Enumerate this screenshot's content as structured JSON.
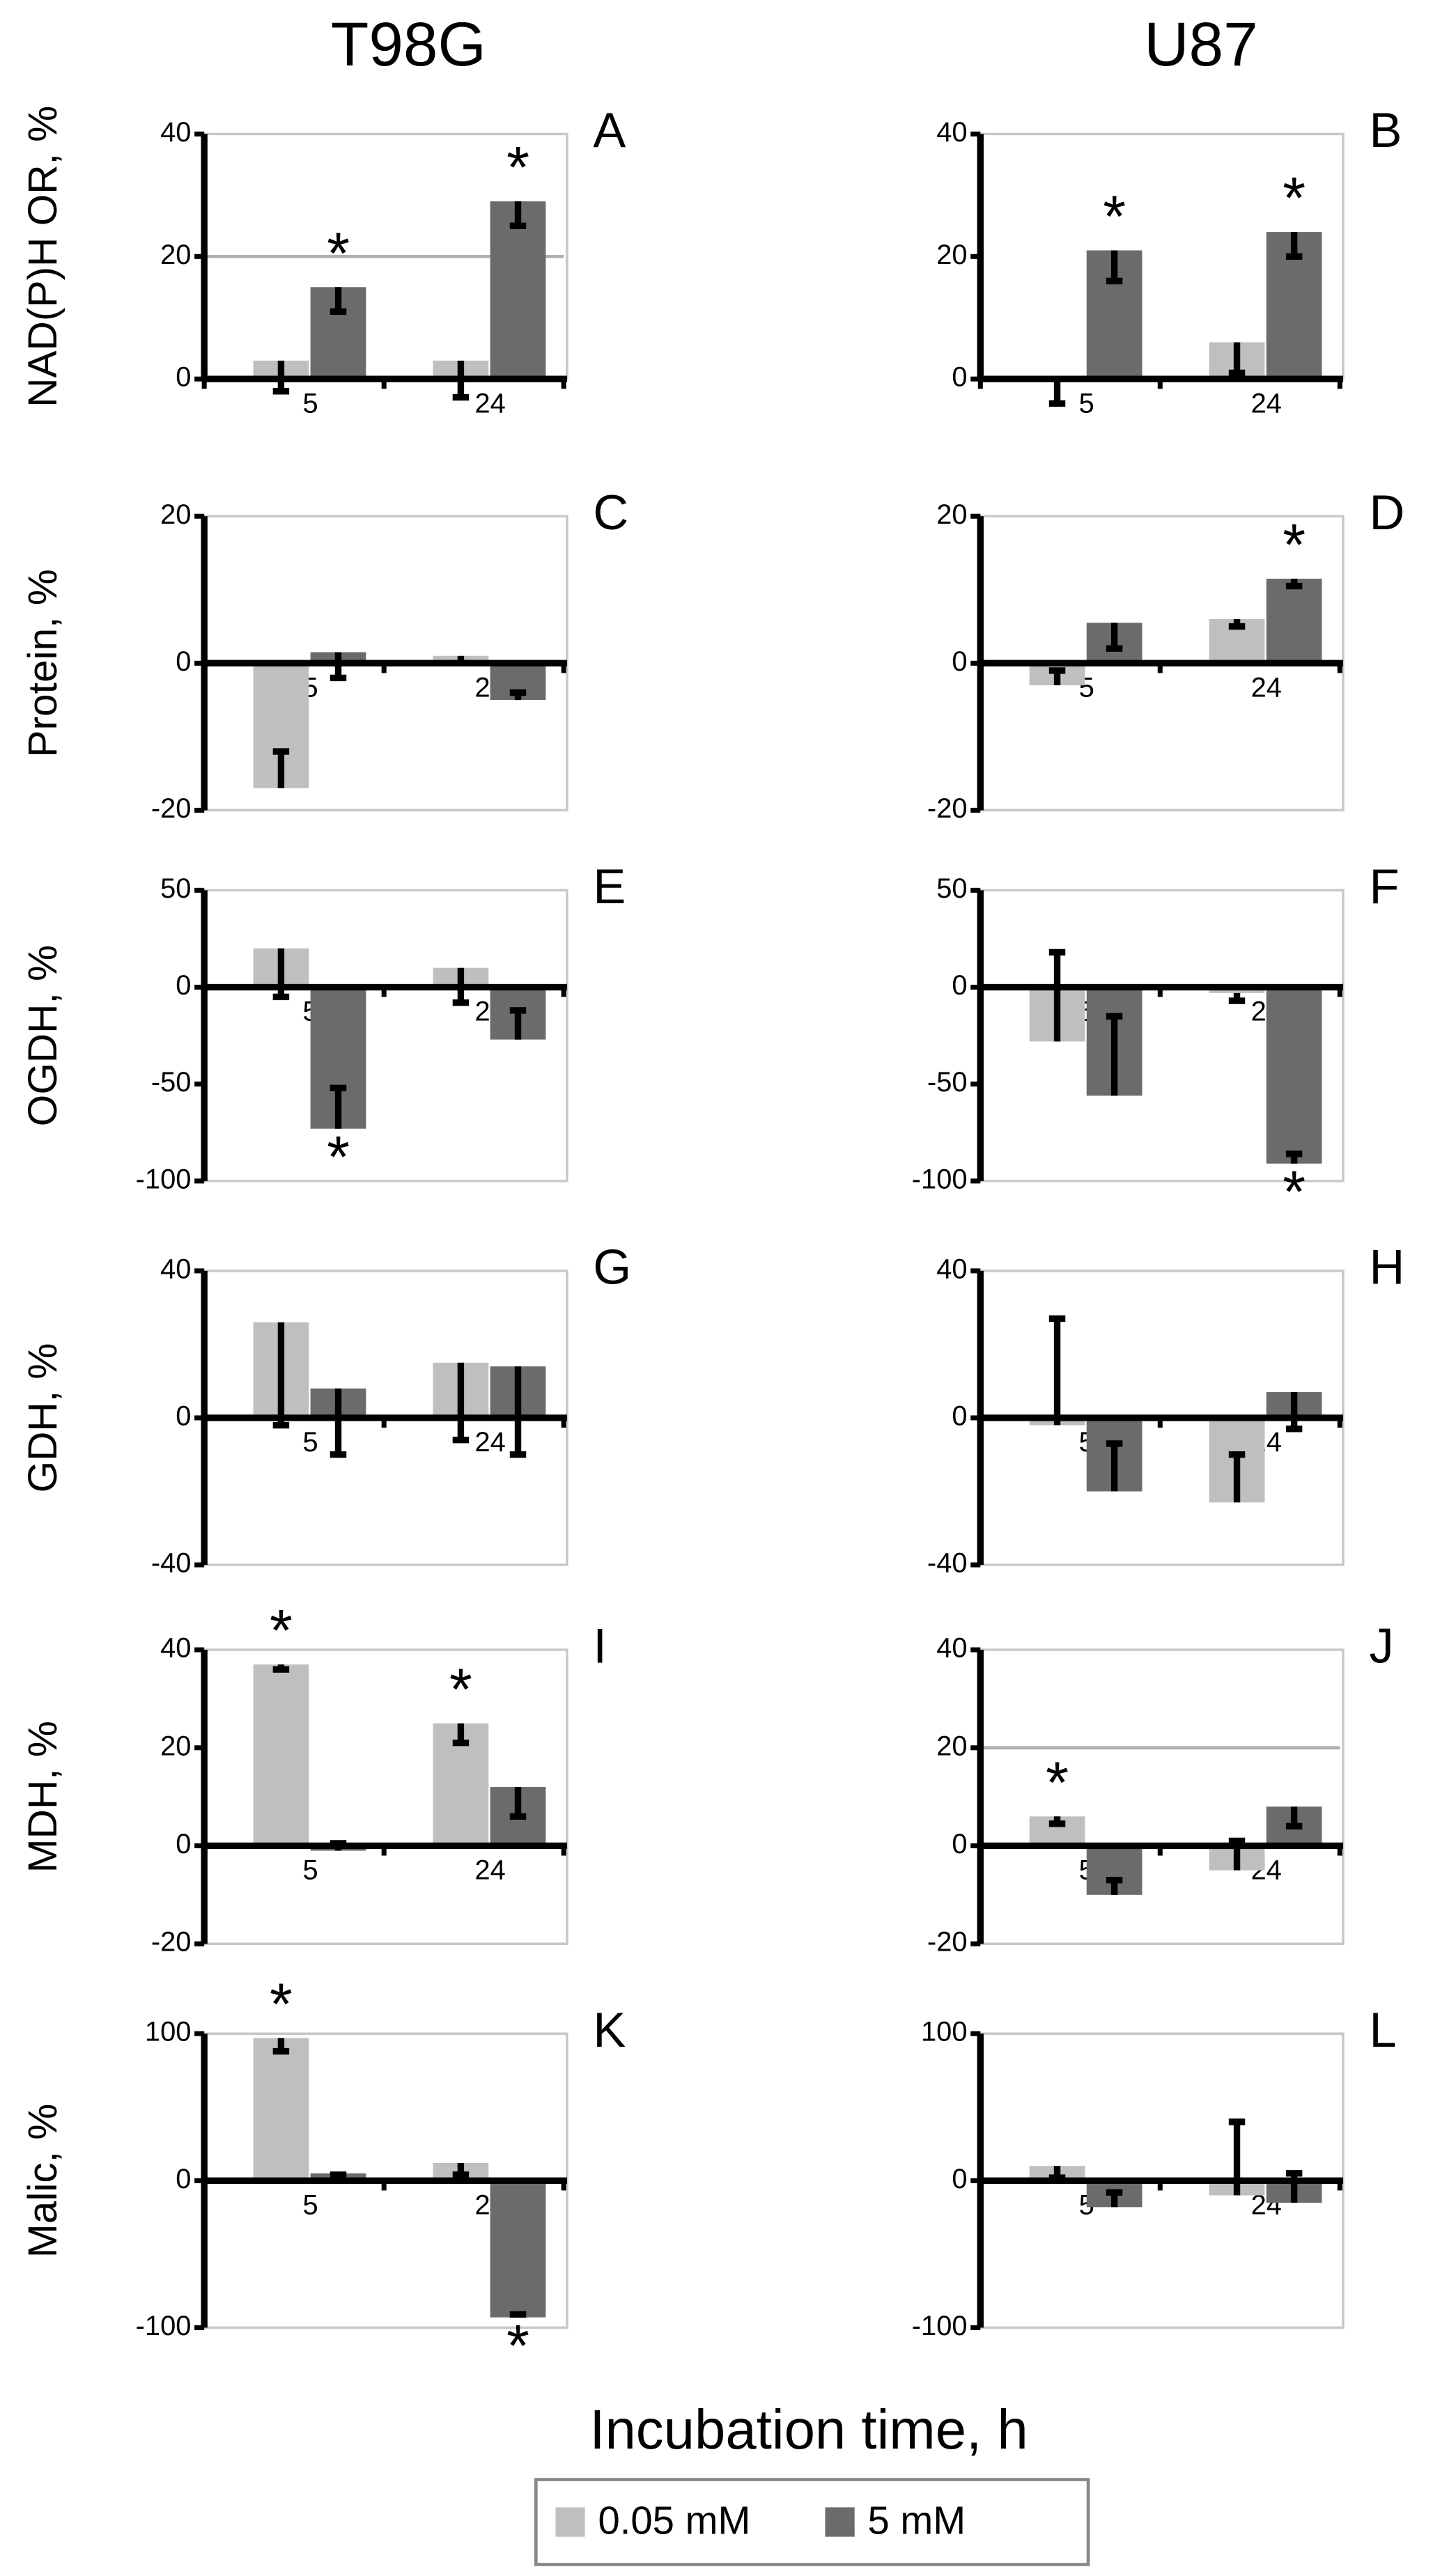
{
  "columns": [
    "T98G",
    "U87"
  ],
  "x_label": "Incubation time, h",
  "legend": [
    {
      "name": "0.05 mM",
      "color": "#bfbfbf"
    },
    {
      "name": "5 mM",
      "color": "#6b6b6b"
    }
  ],
  "chart_data": [
    {
      "type": "bar",
      "panel": "A",
      "ylabel": "NAD(P)H OR, %",
      "categories": [
        "5",
        "24"
      ],
      "ylim": [
        0,
        40
      ],
      "yticks": [
        0,
        20,
        40
      ],
      "grid": true,
      "series": [
        {
          "values": [
            3,
            3
          ],
          "error_ends": [
            -2,
            -3
          ],
          "annotations": [
            null,
            null
          ]
        },
        {
          "values": [
            15,
            29
          ],
          "error_ends": [
            11,
            25
          ],
          "annotations": [
            "*",
            "*"
          ]
        }
      ]
    },
    {
      "type": "bar",
      "panel": "B",
      "categories": [
        "5",
        "24"
      ],
      "ylim": [
        0,
        40
      ],
      "yticks": [
        0,
        20,
        40
      ],
      "grid": false,
      "series": [
        {
          "values": [
            0,
            6
          ],
          "error_ends": [
            -4,
            1
          ],
          "annotations": [
            null,
            null
          ]
        },
        {
          "values": [
            21,
            24
          ],
          "error_ends": [
            16,
            20
          ],
          "annotations": [
            "*",
            "*"
          ]
        }
      ]
    },
    {
      "type": "bar",
      "panel": "C",
      "ylabel": "Protein, %",
      "categories": [
        "5",
        "24"
      ],
      "ylim": [
        -20,
        20
      ],
      "yticks": [
        -20,
        0,
        20
      ],
      "grid": false,
      "series": [
        {
          "values": [
            -17,
            1
          ],
          "error_ends": [
            -12,
            0
          ],
          "annotations": [
            null,
            null
          ]
        },
        {
          "values": [
            1.5,
            -5
          ],
          "error_ends": [
            -2,
            -4
          ],
          "annotations": [
            null,
            null
          ]
        }
      ]
    },
    {
      "type": "bar",
      "panel": "D",
      "categories": [
        "5",
        "24"
      ],
      "ylim": [
        -20,
        20
      ],
      "yticks": [
        -20,
        0,
        20
      ],
      "grid": false,
      "series": [
        {
          "values": [
            -3,
            6
          ],
          "error_ends": [
            -1,
            5
          ],
          "annotations": [
            null,
            null
          ]
        },
        {
          "values": [
            5.5,
            11.5
          ],
          "error_ends": [
            2,
            10.5
          ],
          "annotations": [
            null,
            "*"
          ]
        }
      ]
    },
    {
      "type": "bar",
      "panel": "E",
      "ylabel": "OGDH, %",
      "categories": [
        "5",
        "24"
      ],
      "ylim": [
        -100,
        50
      ],
      "yticks": [
        -100,
        -50,
        0,
        50
      ],
      "grid": false,
      "series": [
        {
          "values": [
            20,
            10
          ],
          "error_ends": [
            -5,
            -8
          ],
          "annotations": [
            null,
            null
          ]
        },
        {
          "values": [
            -73,
            -27
          ],
          "error_ends": [
            -52,
            -12
          ],
          "annotations": [
            "*",
            null
          ]
        }
      ]
    },
    {
      "type": "bar",
      "panel": "F",
      "categories": [
        "5",
        "24"
      ],
      "ylim": [
        -100,
        50
      ],
      "yticks": [
        -100,
        -50,
        0,
        50
      ],
      "grid": false,
      "series": [
        {
          "values": [
            -28,
            -3
          ],
          "error_ends": [
            18,
            -7
          ],
          "annotations": [
            null,
            null
          ]
        },
        {
          "values": [
            -56,
            -91
          ],
          "error_ends": [
            -15,
            -86
          ],
          "annotations": [
            null,
            "*"
          ]
        }
      ]
    },
    {
      "type": "bar",
      "panel": "G",
      "ylabel": "GDH, %",
      "categories": [
        "5",
        "24"
      ],
      "ylim": [
        -40,
        40
      ],
      "yticks": [
        -40,
        0,
        40
      ],
      "grid": false,
      "series": [
        {
          "values": [
            26,
            15
          ],
          "error_ends": [
            -2,
            -6
          ],
          "annotations": [
            null,
            null
          ]
        },
        {
          "values": [
            8,
            14
          ],
          "error_ends": [
            -10,
            -10
          ],
          "annotations": [
            null,
            null
          ]
        }
      ]
    },
    {
      "type": "bar",
      "panel": "H",
      "categories": [
        "5",
        "24"
      ],
      "ylim": [
        -40,
        40
      ],
      "yticks": [
        -40,
        0,
        40
      ],
      "grid": false,
      "series": [
        {
          "values": [
            -2,
            -23
          ],
          "error_ends": [
            27,
            -10
          ],
          "annotations": [
            null,
            null
          ]
        },
        {
          "values": [
            -20,
            7
          ],
          "error_ends": [
            -7,
            -3
          ],
          "annotations": [
            null,
            null
          ]
        }
      ]
    },
    {
      "type": "bar",
      "panel": "I",
      "ylabel": "MDH, %",
      "categories": [
        "5",
        "24"
      ],
      "ylim": [
        -20,
        40
      ],
      "yticks": [
        -20,
        0,
        20,
        40
      ],
      "grid": false,
      "series": [
        {
          "values": [
            37,
            25
          ],
          "error_ends": [
            36,
            21
          ],
          "annotations": [
            "*",
            "*"
          ]
        },
        {
          "values": [
            -1,
            12
          ],
          "error_ends": [
            0.5,
            6
          ],
          "annotations": [
            null,
            null
          ]
        }
      ]
    },
    {
      "type": "bar",
      "panel": "J",
      "categories": [
        "5",
        "24"
      ],
      "ylim": [
        -20,
        40
      ],
      "yticks": [
        -20,
        0,
        20,
        40
      ],
      "grid": true,
      "series": [
        {
          "values": [
            6,
            -5
          ],
          "error_ends": [
            4.5,
            1
          ],
          "annotations": [
            "*",
            null
          ]
        },
        {
          "values": [
            -10,
            8
          ],
          "error_ends": [
            -7,
            4
          ],
          "annotations": [
            null,
            null
          ]
        }
      ]
    },
    {
      "type": "bar",
      "panel": "K",
      "ylabel": "Malic, %",
      "categories": [
        "5",
        "24"
      ],
      "ylim": [
        -100,
        100
      ],
      "yticks": [
        -100,
        0,
        100
      ],
      "grid": false,
      "series": [
        {
          "values": [
            97,
            12
          ],
          "error_ends": [
            88,
            4
          ],
          "annotations": [
            "*",
            null
          ]
        },
        {
          "values": [
            5,
            -93
          ],
          "error_ends": [
            4,
            -91
          ],
          "annotations": [
            null,
            "*"
          ]
        }
      ]
    },
    {
      "type": "bar",
      "panel": "L",
      "categories": [
        "5",
        "24"
      ],
      "ylim": [
        -100,
        100
      ],
      "yticks": [
        -100,
        0,
        100
      ],
      "grid": false,
      "series": [
        {
          "values": [
            10,
            -10
          ],
          "error_ends": [
            2,
            40
          ],
          "annotations": [
            null,
            null
          ]
        },
        {
          "values": [
            -18,
            -15
          ],
          "error_ends": [
            -8,
            5
          ],
          "annotations": [
            null,
            null
          ]
        }
      ]
    }
  ]
}
